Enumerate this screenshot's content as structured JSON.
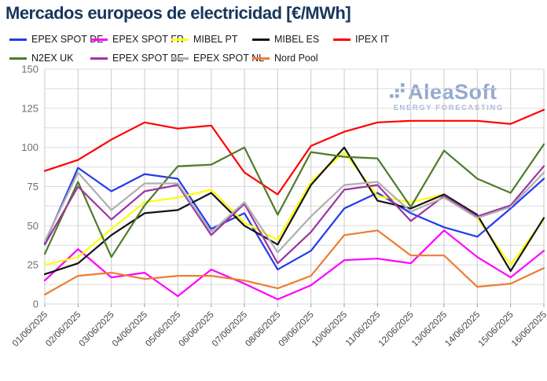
{
  "title": "Mercados europeos de electricidad [€/MWh]",
  "watermark": {
    "brand": "AleaSoft",
    "tagline": "ENERGY FORECASTING",
    "brand_color": "#93A9CE",
    "tagline_color": "#A4B7D7"
  },
  "chart_data": {
    "type": "line",
    "title": "Mercados europeos de electricidad [€/MWh]",
    "xlabel": "",
    "ylabel": "",
    "ylim": [
      0,
      150
    ],
    "ytick_step": 25,
    "minor_gridline_step": 12.5,
    "grid": true,
    "legend_position": "top",
    "x": [
      "01/06/2025",
      "02/06/2025",
      "03/06/2025",
      "04/06/2025",
      "05/06/2025",
      "06/06/2025",
      "07/06/2025",
      "08/06/2025",
      "09/06/2025",
      "10/06/2025",
      "11/06/2025",
      "12/06/2025",
      "13/06/2025",
      "14/06/2025",
      "15/06/2025",
      "16/06/2025"
    ],
    "series": [
      {
        "name": "EPEX SPOT DE",
        "color": "#233BEB",
        "values": [
          39,
          87,
          72,
          83,
          80,
          48,
          58,
          22,
          34,
          61,
          71,
          58,
          49,
          43,
          61,
          80
        ]
      },
      {
        "name": "EPEX SPOT FR",
        "color": "#FF00FF",
        "values": [
          15,
          35,
          17,
          20,
          5,
          22,
          13,
          3,
          12,
          28,
          29,
          26,
          47,
          30,
          17,
          34
        ]
      },
      {
        "name": "MIBEL PT",
        "color": "#FFFF00",
        "values": [
          25,
          30,
          48,
          65,
          68,
          73,
          52,
          41,
          78,
          97,
          69,
          65,
          70,
          55,
          25,
          54
        ]
      },
      {
        "name": "MIBEL ES",
        "color": "#141414",
        "values": [
          19,
          26,
          44,
          58,
          60,
          71,
          50,
          38,
          76,
          100,
          66,
          61,
          70,
          57,
          21,
          55
        ]
      },
      {
        "name": "IPEX IT",
        "color": "#FF0000",
        "values": [
          85,
          92,
          105,
          116,
          112,
          114,
          84,
          70,
          101,
          110,
          116,
          117,
          117,
          117,
          115,
          124
        ]
      },
      {
        "name": "N2EX UK",
        "color": "#4F7B28",
        "values": [
          32,
          78,
          30,
          63,
          88,
          89,
          100,
          57,
          97,
          94,
          93,
          62,
          98,
          80,
          71,
          102
        ]
      },
      {
        "name": "EPEX SPOT BE",
        "color": "#9B36A0",
        "values": [
          38,
          75,
          54,
          72,
          76,
          44,
          64,
          26,
          46,
          73,
          76,
          53,
          69,
          56,
          63,
          88
        ]
      },
      {
        "name": "EPEX SPOT NL",
        "color": "#AFAFAF",
        "values": [
          40,
          84,
          60,
          77,
          77,
          46,
          65,
          33,
          56,
          76,
          78,
          59,
          68,
          55,
          62,
          84
        ]
      },
      {
        "name": "Nord Pool",
        "color": "#ED7D31",
        "values": [
          6,
          18,
          20,
          16,
          18,
          18,
          15,
          10,
          18,
          44,
          47,
          31,
          31,
          11,
          13,
          23
        ]
      }
    ]
  }
}
